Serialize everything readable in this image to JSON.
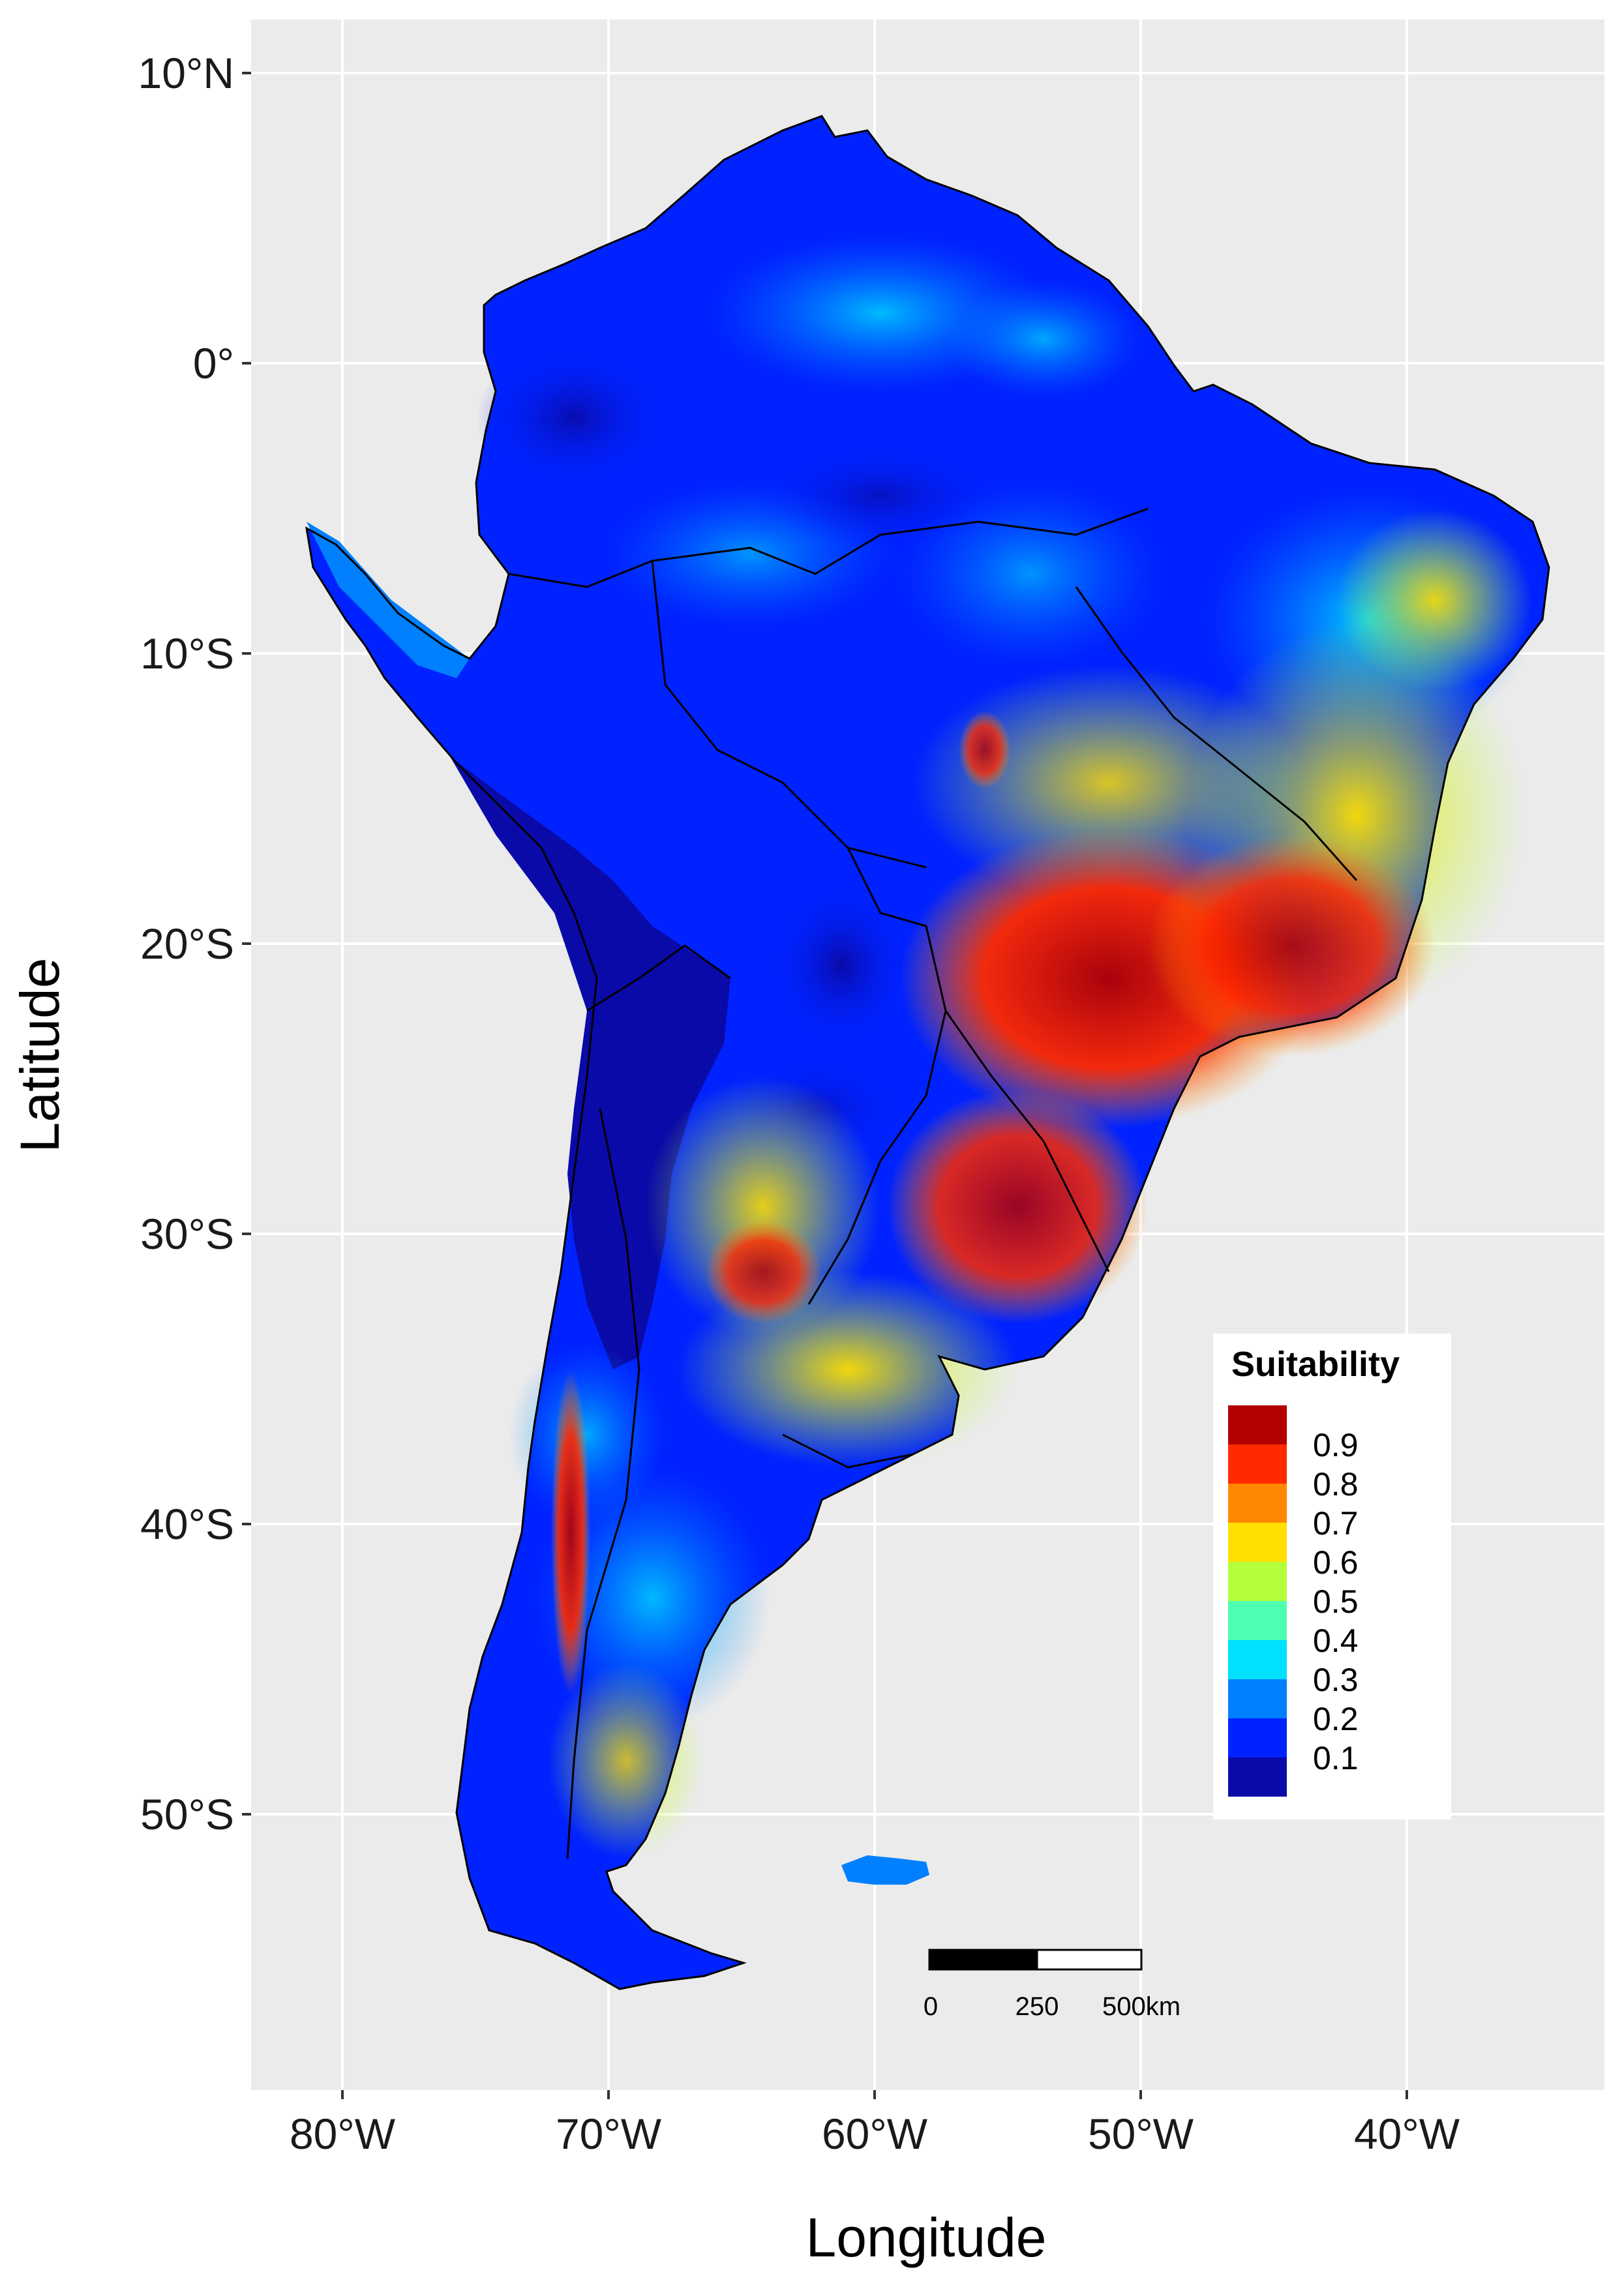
{
  "map": {
    "x_axis": {
      "title": "Longitude",
      "ticks": [
        {
          "value": -80,
          "label": "80°W"
        },
        {
          "value": -70,
          "label": "70°W"
        },
        {
          "value": -60,
          "label": "60°W"
        },
        {
          "value": -50,
          "label": "50°W"
        },
        {
          "value": -40,
          "label": "40°W"
        }
      ]
    },
    "y_axis": {
      "title": "Latitude",
      "ticks": [
        {
          "value": 10,
          "label": "10°N"
        },
        {
          "value": 0,
          "label": "0°"
        },
        {
          "value": -10,
          "label": "10°S"
        },
        {
          "value": -20,
          "label": "20°S"
        },
        {
          "value": -30,
          "label": "30°S"
        },
        {
          "value": -40,
          "label": "40°S"
        },
        {
          "value": -50,
          "label": "50°S"
        }
      ]
    },
    "legend": {
      "title": "Suitability",
      "position": "bottom-right",
      "bins": [
        {
          "label": "0.9",
          "color": "#b30000"
        },
        {
          "label": "0.8",
          "color": "#ff2a00"
        },
        {
          "label": "0.7",
          "color": "#ff8800"
        },
        {
          "label": "0.6",
          "color": "#ffe000"
        },
        {
          "label": "0.5",
          "color": "#b4ff3c"
        },
        {
          "label": "0.4",
          "color": "#4dffb0"
        },
        {
          "label": "0.3",
          "color": "#00e0ff"
        },
        {
          "label": "0.2",
          "color": "#0080ff"
        },
        {
          "label": "0.1",
          "color": "#0022ff"
        },
        {
          "label": "",
          "color": "#0a0aa8"
        }
      ]
    },
    "scale_bar": {
      "labels": [
        "0",
        "250",
        "500km"
      ]
    },
    "colors": {
      "panel_background": "#ebebeb",
      "gridline": "#ffffff",
      "boundary": "#000000"
    }
  }
}
